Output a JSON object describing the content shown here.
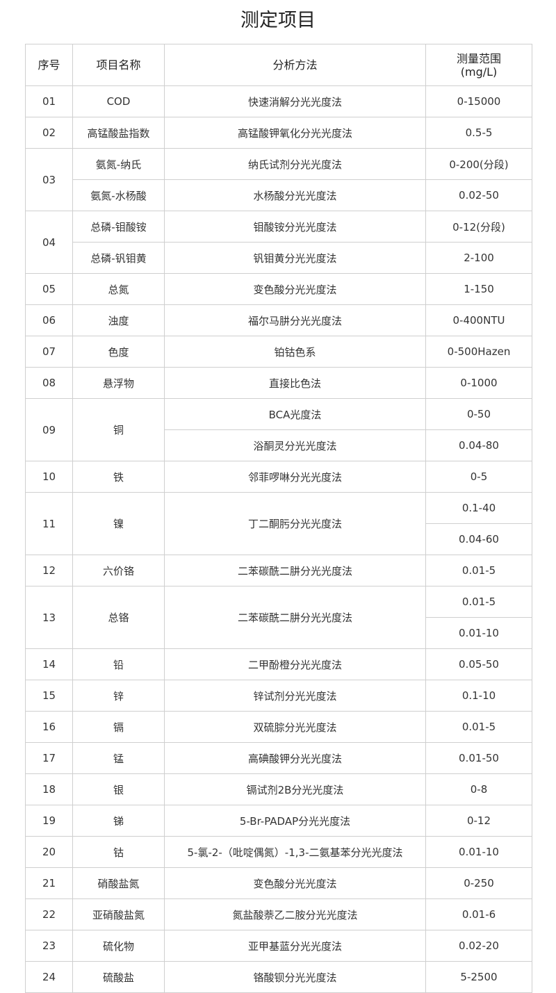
{
  "title": "测定项目",
  "headers": [
    "序号",
    "项目名称",
    "分析方法",
    "测量范围\n(mg/L)"
  ],
  "groups": [
    {
      "no": "01",
      "names": [
        "COD"
      ],
      "methods": [
        "快速消解分光光度法"
      ],
      "ranges": [
        "0-15000"
      ]
    },
    {
      "no": "02",
      "names": [
        "高锰酸盐指数"
      ],
      "methods": [
        "高锰酸钾氧化分光光度法"
      ],
      "ranges": [
        "0.5-5"
      ]
    },
    {
      "no": "03",
      "names": [
        "氨氮-纳氏",
        "氨氮-水杨酸"
      ],
      "methods": [
        "纳氏试剂分光光度法",
        "水杨酸分光光度法"
      ],
      "ranges": [
        "0-200(分段)",
        "0.02-50"
      ]
    },
    {
      "no": "04",
      "names": [
        "总磷-钼酸铵",
        "总磷-钒钼黄"
      ],
      "methods": [
        "钼酸铵分光光度法",
        "钒钼黄分光光度法"
      ],
      "ranges": [
        "0-12(分段)",
        "2-100"
      ]
    },
    {
      "no": "05",
      "names": [
        "总氮"
      ],
      "methods": [
        "变色酸分光光度法"
      ],
      "ranges": [
        "1-150"
      ]
    },
    {
      "no": "06",
      "names": [
        "浊度"
      ],
      "methods": [
        "福尔马肼分光光度法"
      ],
      "ranges": [
        "0-400NTU"
      ]
    },
    {
      "no": "07",
      "names": [
        "色度"
      ],
      "methods": [
        "铂钴色系"
      ],
      "ranges": [
        "0-500Hazen"
      ]
    },
    {
      "no": "08",
      "names": [
        "悬浮物"
      ],
      "methods": [
        "直接比色法"
      ],
      "ranges": [
        "0-1000"
      ]
    },
    {
      "no": "09",
      "names": [
        "铜"
      ],
      "methods": [
        "BCA光度法",
        "浴酮灵分光光度法"
      ],
      "ranges": [
        "0-50",
        "0.04-80"
      ]
    },
    {
      "no": "10",
      "names": [
        "铁"
      ],
      "methods": [
        "邻菲啰啉分光光度法"
      ],
      "ranges": [
        "0-5"
      ]
    },
    {
      "no": "11",
      "names": [
        "镍"
      ],
      "methods": [
        "丁二酮肟分光光度法"
      ],
      "ranges": [
        "0.1-40",
        "0.04-60"
      ]
    },
    {
      "no": "12",
      "names": [
        "六价铬"
      ],
      "methods": [
        "二苯碳酰二肼分光光度法"
      ],
      "ranges": [
        "0.01-5"
      ]
    },
    {
      "no": "13",
      "names": [
        "总铬"
      ],
      "methods": [
        "二苯碳酰二肼分光光度法"
      ],
      "ranges": [
        "0.01-5",
        "0.01-10"
      ]
    },
    {
      "no": "14",
      "names": [
        "铅"
      ],
      "methods": [
        "二甲酚橙分光光度法"
      ],
      "ranges": [
        "0.05-50"
      ]
    },
    {
      "no": "15",
      "names": [
        "锌"
      ],
      "methods": [
        "锌试剂分光光度法"
      ],
      "ranges": [
        "0.1-10"
      ]
    },
    {
      "no": "16",
      "names": [
        "镉"
      ],
      "methods": [
        "双硫腙分光光度法"
      ],
      "ranges": [
        "0.01-5"
      ]
    },
    {
      "no": "17",
      "names": [
        "锰"
      ],
      "methods": [
        "高碘酸钾分光光度法"
      ],
      "ranges": [
        "0.01-50"
      ]
    },
    {
      "no": "18",
      "names": [
        "银"
      ],
      "methods": [
        "镉试剂2B分光光度法"
      ],
      "ranges": [
        "0-8"
      ]
    },
    {
      "no": "19",
      "names": [
        "锑"
      ],
      "methods": [
        "5-Br-PADAP分光光度法"
      ],
      "ranges": [
        "0-12"
      ]
    },
    {
      "no": "20",
      "names": [
        "钴"
      ],
      "methods": [
        "5-氯-2-（吡啶偶氮）-1,3-二氨基苯分光光度法"
      ],
      "ranges": [
        "0.01-10"
      ]
    },
    {
      "no": "21",
      "names": [
        "硝酸盐氮"
      ],
      "methods": [
        "变色酸分光光度法"
      ],
      "ranges": [
        "0-250"
      ]
    },
    {
      "no": "22",
      "names": [
        "亚硝酸盐氮"
      ],
      "methods": [
        "氮盐酸萘乙二胺分光光度法"
      ],
      "ranges": [
        "0.01-6"
      ]
    },
    {
      "no": "23",
      "names": [
        "硫化物"
      ],
      "methods": [
        "亚甲基蓝分光光度法"
      ],
      "ranges": [
        "0.02-20"
      ]
    },
    {
      "no": "24",
      "names": [
        "硫酸盐"
      ],
      "methods": [
        "铬酸钡分光光度法"
      ],
      "ranges": [
        "5-2500"
      ]
    }
  ]
}
